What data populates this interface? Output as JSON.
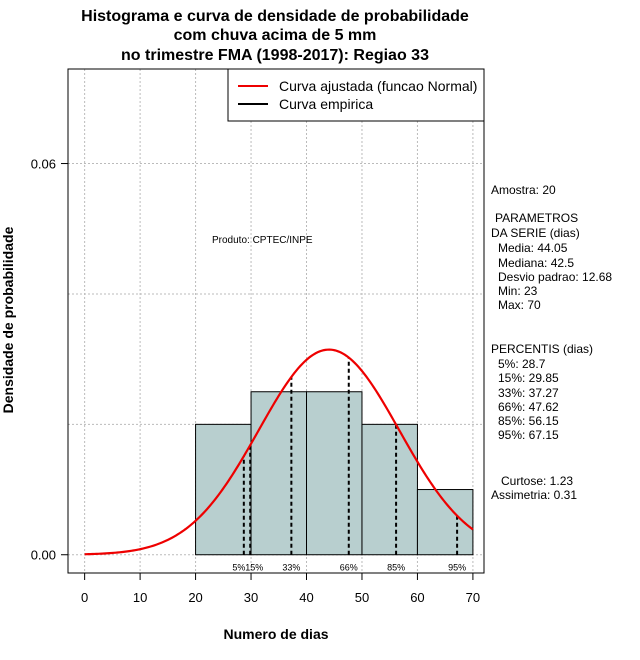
{
  "chart_data": {
    "type": "histogram",
    "title": [
      "Histograma e curva de densidade de probabilidade",
      "com chuva acima de 5 mm",
      "no trimestre FMA (1998-2017): Regiao 33"
    ],
    "xlabel": "Numero de dias",
    "ylabel": "Densidade de probabilidade",
    "xlim": [
      -3,
      72
    ],
    "ylim": [
      -0.0028,
      0.0745
    ],
    "x_ticks": [
      0,
      10,
      20,
      30,
      40,
      50,
      60,
      70
    ],
    "x_tick_labels": [
      "0",
      "10",
      "20",
      "30",
      "40",
      "50",
      "60",
      "70"
    ],
    "y_ticks": [
      0.0,
      0.06
    ],
    "y_tick_labels": [
      "0.00",
      "0.06"
    ],
    "grid_y": [
      0.0,
      0.02,
      0.04,
      0.06
    ],
    "bins": [
      {
        "from": 20,
        "to": 30,
        "density": 0.02
      },
      {
        "from": 30,
        "to": 40,
        "density": 0.025
      },
      {
        "from": 40,
        "to": 50,
        "density": 0.025
      },
      {
        "from": 50,
        "to": 60,
        "density": 0.02
      },
      {
        "from": 60,
        "to": 70,
        "density": 0.01
      }
    ],
    "normal_fit": {
      "mean": 44.05,
      "sd": 12.68,
      "x_from": 0,
      "x_to": 70
    },
    "percentiles": [
      {
        "label": "5%",
        "value": 28.7
      },
      {
        "label": "15%",
        "value": 29.85
      },
      {
        "label": "33%",
        "value": 37.27
      },
      {
        "label": "66%",
        "value": 47.62
      },
      {
        "label": "85%",
        "value": 56.15
      },
      {
        "label": "95%",
        "value": 67.15
      }
    ],
    "legend": {
      "position": "top-right",
      "items": [
        {
          "label": "Curva ajustada (funcao Normal)",
          "color": "#ee0000"
        },
        {
          "label": "Curva empirica",
          "color": "#000000"
        }
      ]
    },
    "annotation": "Produto: CPTEC/INPE",
    "colors": {
      "bar_fill": "#b8cfcf",
      "bar_stroke": "#000000",
      "curve": "#ee0000",
      "grid": "#bbbbbb"
    }
  },
  "stats": {
    "amostra": "Amostra: 20",
    "param_title_1": "PARAMETROS",
    "param_title_2": "DA SERIE (dias)",
    "media": "Media: 44.05",
    "mediana": "Mediana: 42.5",
    "desvio": "Desvio padrao: 12.68",
    "min": "Min: 23",
    "max": "Max: 70",
    "pct_title": "PERCENTIS (dias)",
    "p5": "5%: 28.7",
    "p15": "15%: 29.85",
    "p33": "33%: 37.27",
    "p66": "66%: 47.62",
    "p85": "85%: 56.15",
    "p95": "95%: 67.15",
    "curtose": "Curtose: 1.23",
    "assimetria": "Assimetria: 0.31"
  }
}
